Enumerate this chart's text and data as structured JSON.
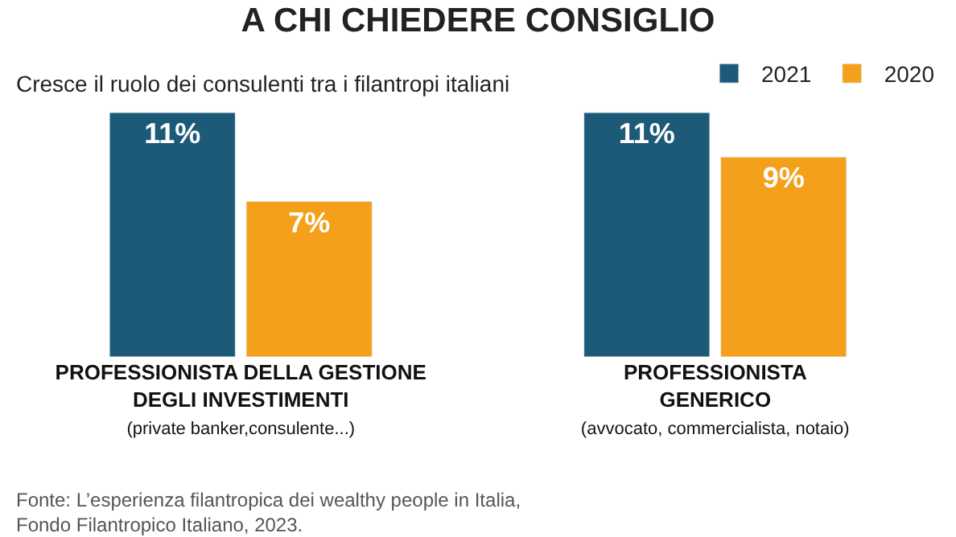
{
  "chart_data": {
    "type": "bar",
    "title": "A CHI CHIEDERE CONSIGLIO",
    "subtitle": "Cresce il ruolo dei consulenti tra i filantropi italiani",
    "categories": [
      "PROFESSIONISTA DELLA GESTIONE\nDEGLI INVESTIMENTI\n(private banker,consulente...)",
      "PROFESSIONISTA\nGENERICO\n(avvocato, commercialista, notaio)"
    ],
    "series": [
      {
        "name": "2021",
        "color": "#1d5a78",
        "values": [
          11,
          11
        ],
        "value_labels": [
          "11%",
          "11%"
        ]
      },
      {
        "name": "2020",
        "color": "#f5a01a",
        "values": [
          7,
          9
        ],
        "value_labels": [
          "7%",
          "9%"
        ]
      }
    ],
    "legend": "top right",
    "annotations": [
      "Fonte: L’esperienza filantropica dei wealthy people in Italia,\nFondo Filantropico Italiano, 2023."
    ]
  }
}
